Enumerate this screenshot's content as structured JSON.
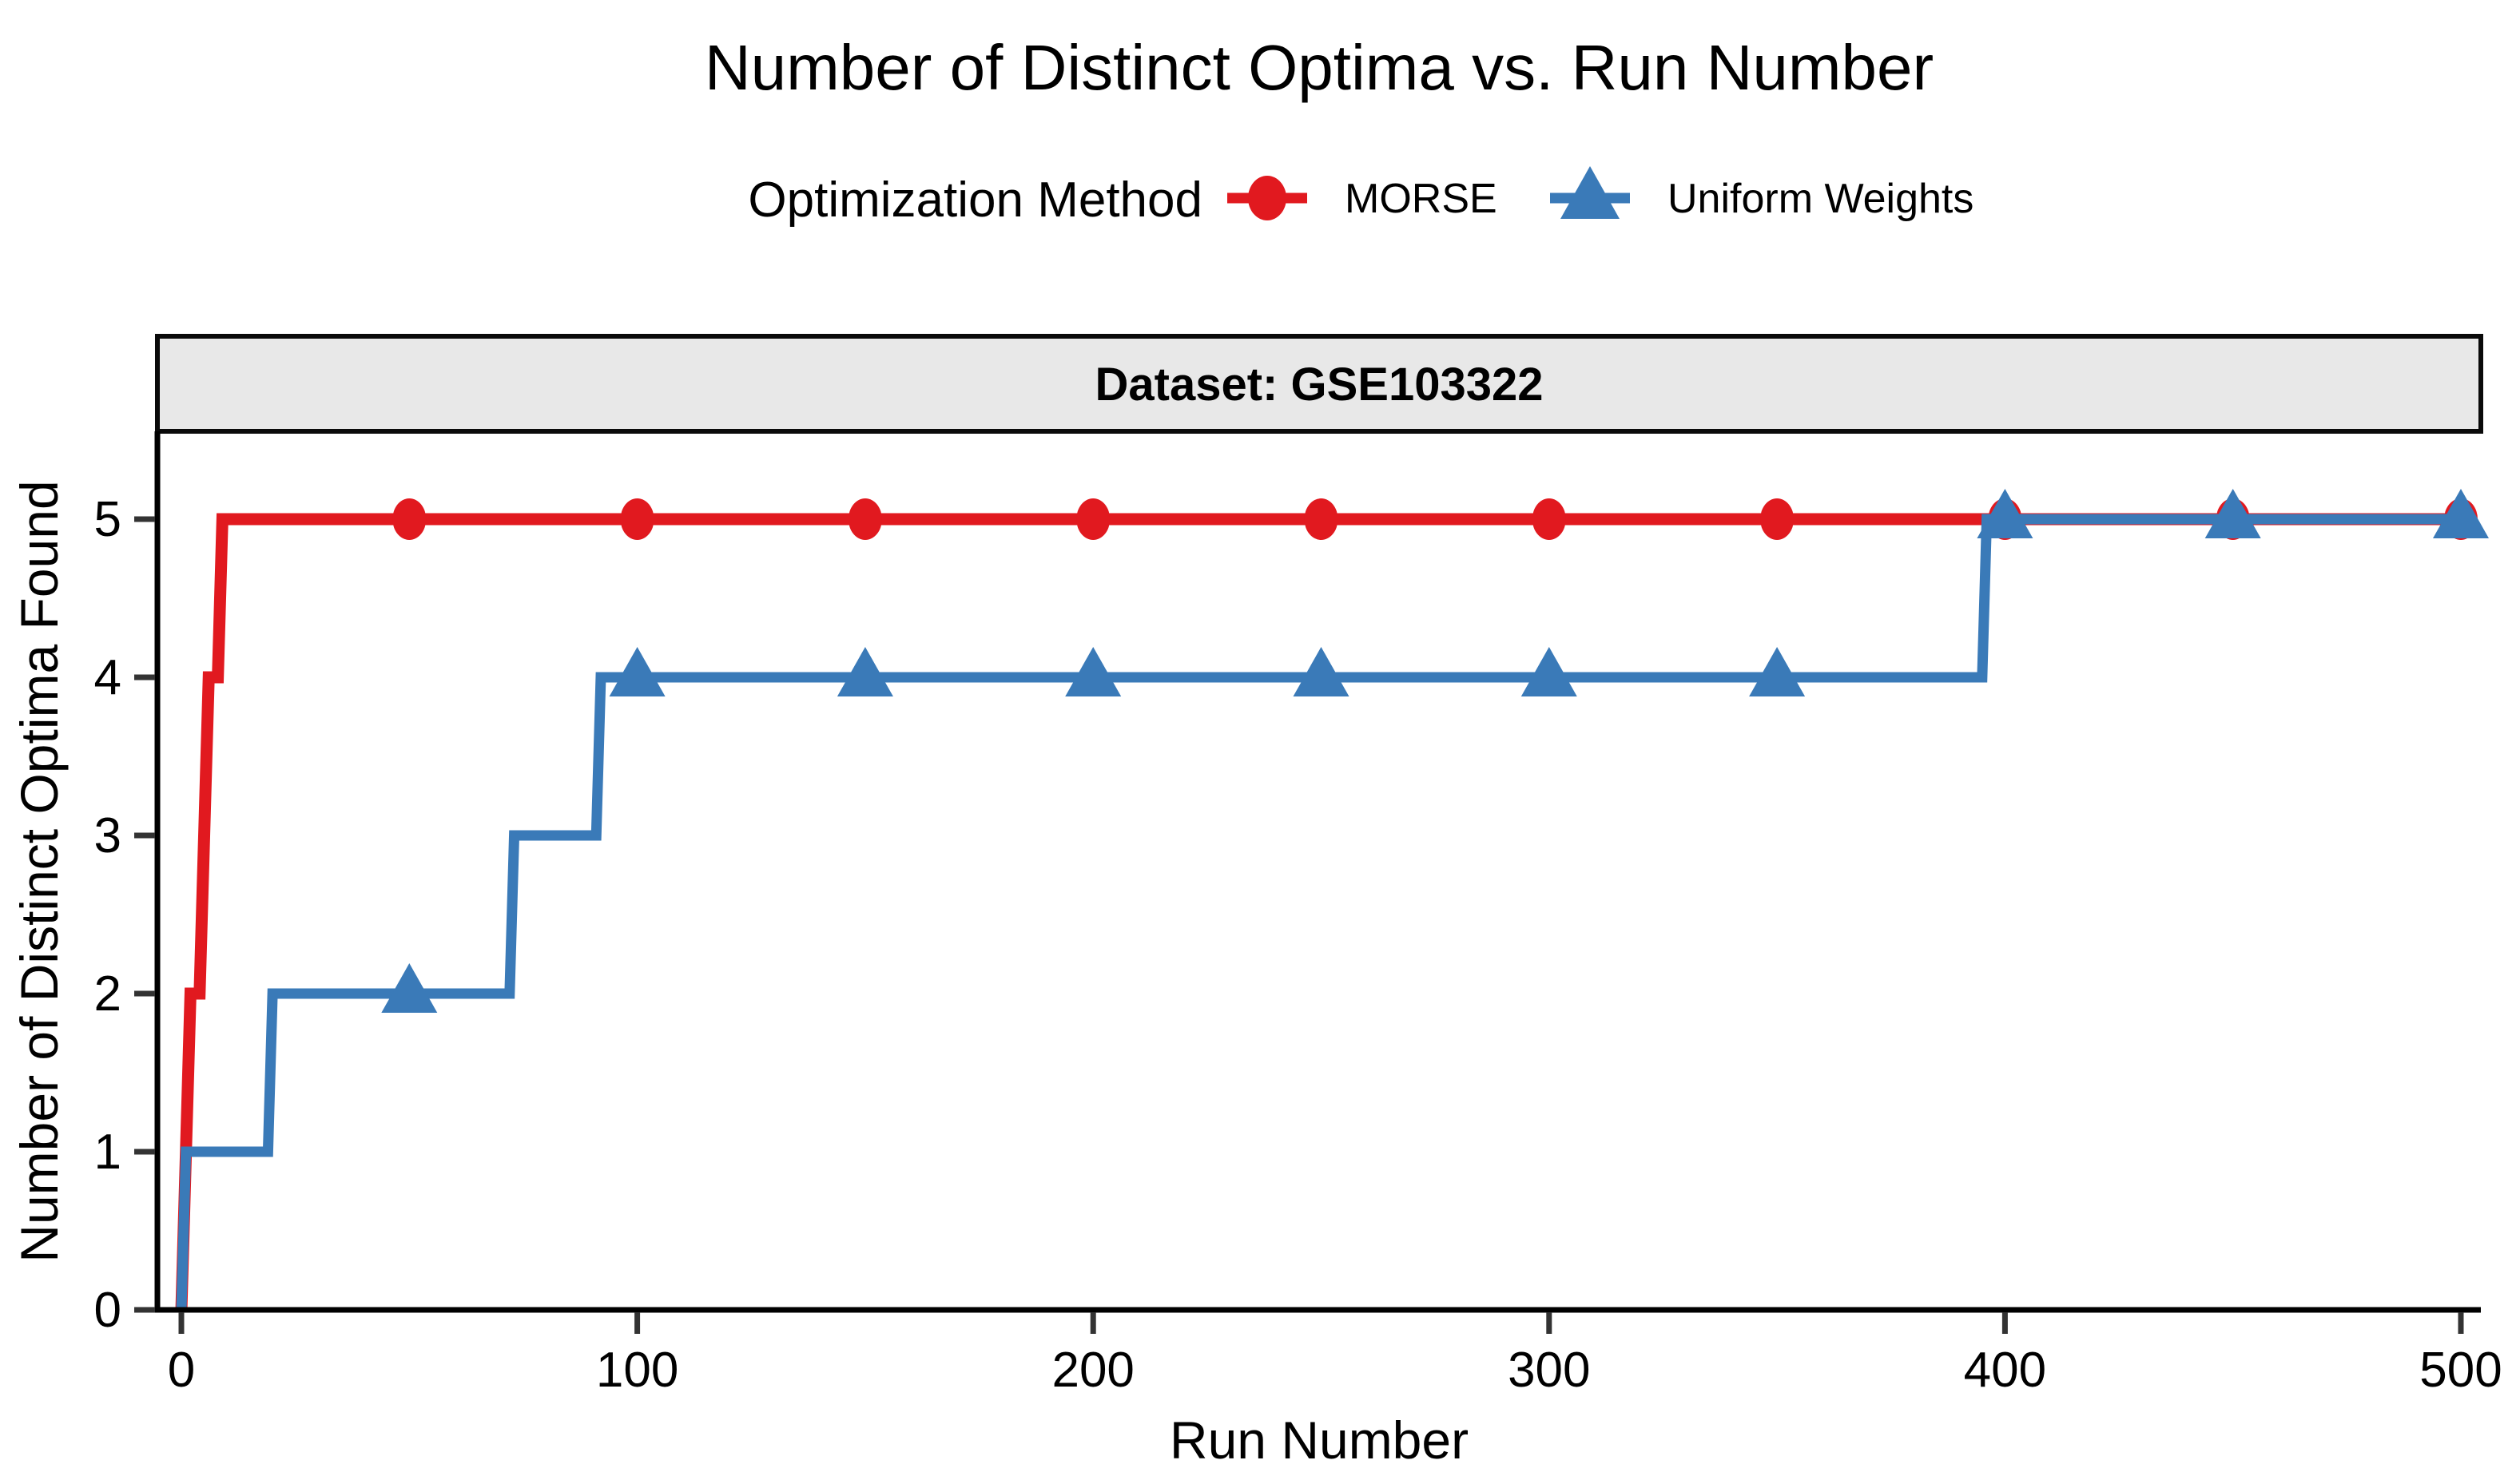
{
  "title": "Number of Distinct Optima vs. Run Number",
  "legend": {
    "title": "Optimization Method",
    "items": [
      {
        "label": "MORSE",
        "color": "#e1191f",
        "marker": "circle"
      },
      {
        "label": "Uniform Weights",
        "color": "#3a7ab8",
        "marker": "triangle"
      }
    ]
  },
  "strip": {
    "label": "Dataset: GSE103322",
    "fill": "#e8e8e8",
    "border": "#0a0a0a"
  },
  "axis": {
    "line_color": "#000000",
    "tick_color": "#333333"
  },
  "chart_data": {
    "type": "line",
    "subtype": "step",
    "title": "Number of Distinct Optima vs. Run Number",
    "facet_label": "Dataset: GSE103322",
    "xlabel": "Run Number",
    "ylabel": "Number of Distinct Optima Found",
    "xlim": [
      0,
      500
    ],
    "ylim": [
      0,
      5
    ],
    "x_ticks": [
      0,
      100,
      200,
      300,
      400,
      500
    ],
    "y_ticks": [
      0,
      1,
      2,
      3,
      4,
      5
    ],
    "grid": false,
    "legend_position": "top",
    "series": [
      {
        "name": "MORSE",
        "color": "#e1191f",
        "marker": "circle",
        "step_points": [
          [
            0,
            0
          ],
          [
            1,
            1
          ],
          [
            2,
            2
          ],
          [
            4,
            2
          ],
          [
            5,
            3
          ],
          [
            6,
            4
          ],
          [
            8,
            4
          ],
          [
            9,
            5
          ],
          [
            500,
            5
          ]
        ],
        "marker_points": [
          [
            50,
            5
          ],
          [
            100,
            5
          ],
          [
            150,
            5
          ],
          [
            200,
            5
          ],
          [
            250,
            5
          ],
          [
            300,
            5
          ],
          [
            350,
            5
          ],
          [
            400,
            5
          ],
          [
            450,
            5
          ],
          [
            500,
            5
          ]
        ]
      },
      {
        "name": "Uniform Weights",
        "color": "#3a7ab8",
        "marker": "triangle",
        "step_points": [
          [
            0,
            0
          ],
          [
            1,
            1
          ],
          [
            19,
            1
          ],
          [
            20,
            2
          ],
          [
            72,
            2
          ],
          [
            73,
            3
          ],
          [
            91,
            3
          ],
          [
            92,
            4
          ],
          [
            395,
            4
          ],
          [
            396,
            5
          ],
          [
            500,
            5
          ]
        ],
        "marker_points": [
          [
            50,
            2
          ],
          [
            100,
            4
          ],
          [
            150,
            4
          ],
          [
            200,
            4
          ],
          [
            250,
            4
          ],
          [
            300,
            4
          ],
          [
            350,
            4
          ],
          [
            400,
            5
          ],
          [
            450,
            5
          ],
          [
            500,
            5
          ]
        ]
      }
    ]
  }
}
